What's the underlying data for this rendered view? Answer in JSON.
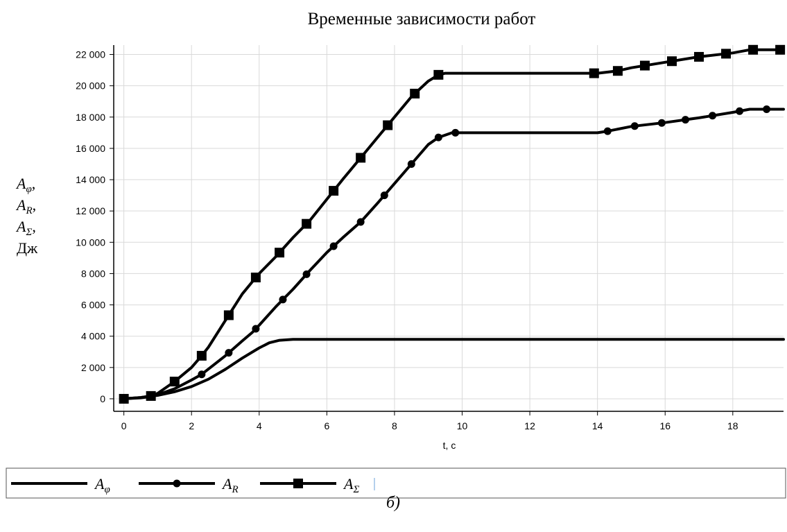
{
  "chart_data": {
    "type": "line",
    "title": "Временные зависимости работ",
    "xlabel": "t, c",
    "ylabel": {
      "lines": [
        {
          "base": "A",
          "sub": "φ",
          "suffix": ","
        },
        {
          "base": "A",
          "sub": "R",
          "suffix": ","
        },
        {
          "base": "A",
          "sub": "Σ",
          "suffix": ","
        },
        {
          "base": "Дж",
          "sub": "",
          "suffix": ""
        }
      ]
    },
    "xlim": [
      -0.3,
      19.5
    ],
    "ylim": [
      -800,
      22600
    ],
    "x_ticks": [
      0,
      2,
      4,
      6,
      8,
      10,
      12,
      14,
      16,
      18
    ],
    "y_ticks": [
      0,
      2000,
      4000,
      6000,
      8000,
      10000,
      12000,
      14000,
      16000,
      18000,
      20000,
      22000
    ],
    "x_tick_labels": [
      "0",
      "2",
      "4",
      "6",
      "8",
      "10",
      "12",
      "14",
      "16",
      "18"
    ],
    "y_tick_labels": [
      "0",
      "2 000",
      "4 000",
      "6 000",
      "8 000",
      "10 000",
      "12 000",
      "14 000",
      "16 000",
      "18 000",
      "20 000",
      "22 000"
    ],
    "grid": true,
    "legend_position": "bottom",
    "series": [
      {
        "name": "A_φ",
        "marker": "none",
        "x": [
          0,
          0.5,
          1,
          1.5,
          2,
          2.5,
          3,
          3.5,
          4,
          4.3,
          4.6,
          5,
          6,
          8,
          10,
          12,
          14,
          16,
          18,
          19.5
        ],
        "y": [
          0,
          80,
          220,
          450,
          780,
          1250,
          1880,
          2600,
          3250,
          3580,
          3740,
          3800,
          3800,
          3800,
          3800,
          3800,
          3800,
          3800,
          3800,
          3800
        ],
        "markers_x": []
      },
      {
        "name": "A_R",
        "marker": "circle",
        "x": [
          0,
          0.5,
          0.8,
          1,
          1.5,
          2,
          2.3,
          2.5,
          3,
          3.5,
          3.8,
          4,
          4.5,
          5,
          5.5,
          6,
          6.5,
          7,
          7.5,
          8,
          8.5,
          9,
          9.3,
          9.7,
          10,
          12,
          14,
          14.3,
          15,
          16,
          17,
          18,
          18.5,
          19.5
        ],
        "y": [
          0,
          60,
          150,
          260,
          640,
          1200,
          1560,
          1900,
          2750,
          3700,
          4250,
          4700,
          5900,
          7000,
          8200,
          9350,
          10350,
          11300,
          12500,
          13750,
          15000,
          16250,
          16700,
          17000,
          17000,
          17000,
          17000,
          17100,
          17400,
          17650,
          17950,
          18300,
          18500,
          18500
        ],
        "markers_x": [
          0,
          0.8,
          2.3,
          3.1,
          3.9,
          4.7,
          5.4,
          6.2,
          7.0,
          7.7,
          8.5,
          9.3,
          9.8,
          14.3,
          15.1,
          15.9,
          16.6,
          17.4,
          18.2,
          19.0
        ]
      },
      {
        "name": "A_Σ",
        "marker": "square",
        "x": [
          0,
          0.5,
          0.8,
          1,
          1.5,
          2,
          2.3,
          2.5,
          3,
          3.5,
          3.9,
          4,
          4.5,
          5,
          5.5,
          6,
          6.5,
          7,
          7.5,
          8,
          8.5,
          9,
          9.3,
          9.5,
          10,
          12,
          14,
          14.6,
          15,
          16,
          17,
          18,
          18.5,
          19.5
        ],
        "y": [
          0,
          80,
          180,
          350,
          1100,
          2000,
          2750,
          3300,
          5000,
          6700,
          7750,
          8000,
          9100,
          10300,
          11400,
          12750,
          14100,
          15400,
          16700,
          18000,
          19300,
          20300,
          20700,
          20800,
          20800,
          20800,
          20800,
          20950,
          21150,
          21500,
          21850,
          22100,
          22300,
          22300
        ],
        "markers_x": [
          0,
          0.8,
          1.5,
          2.3,
          3.1,
          3.9,
          4.6,
          5.4,
          6.2,
          7.0,
          7.8,
          8.6,
          9.3,
          13.9,
          14.6,
          15.4,
          16.2,
          17.0,
          17.8,
          18.6,
          19.4
        ]
      }
    ],
    "legend": {
      "items": [
        {
          "base": "A",
          "sub": "φ",
          "marker": "none"
        },
        {
          "base": "A",
          "sub": "R",
          "marker": "circle"
        },
        {
          "base": "A",
          "sub": "Σ",
          "marker": "square"
        }
      ]
    },
    "caption": "б)"
  }
}
